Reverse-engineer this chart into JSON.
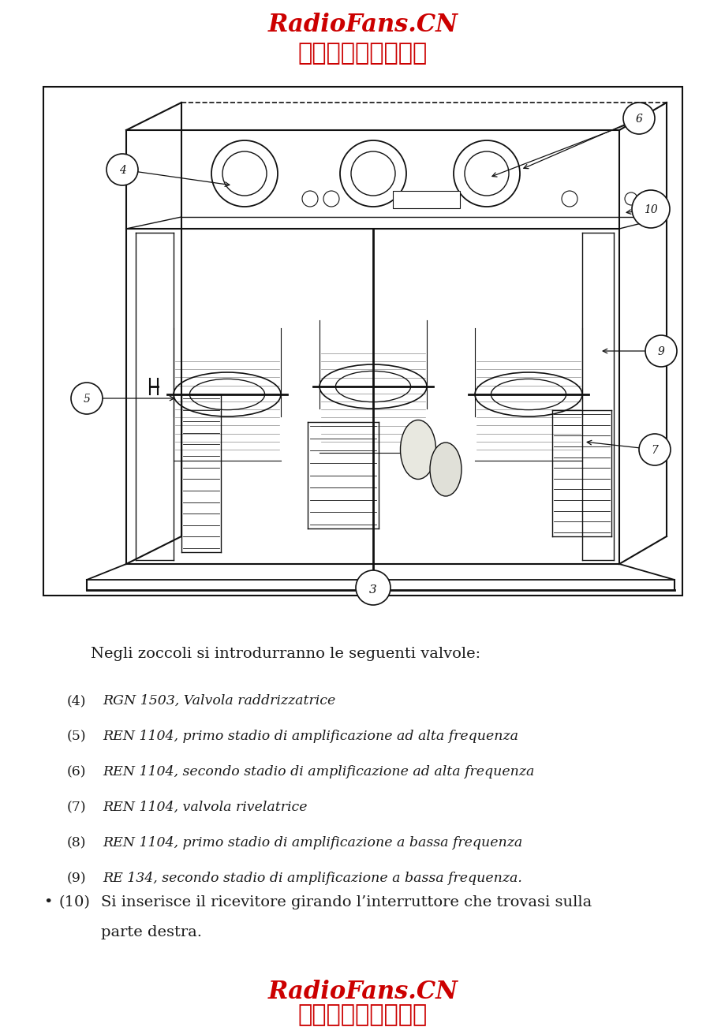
{
  "bg_color": "#ffffff",
  "header_line1": "RadioFans.CN",
  "header_line2": "收音机爱好者资料库",
  "footer_line1": "RadioFans.CN",
  "footer_line2": "收音机爱好者资料库",
  "red_color": "#cc0000",
  "text_color": "#1a1a1a",
  "intro_text": "Negli zoccoli si introdurranno le seguenti valvole:",
  "items": [
    [
      "(4)",
      "RGN 1503, Valvola raddrizzatrice"
    ],
    [
      "(5)",
      "REN 1104, primo stadio di amplificazione ad alta frequenza"
    ],
    [
      "(6)",
      "REN 1104, secondo stadio di amplificazione ad alta frequenza"
    ],
    [
      "(7)",
      "REN 1104, valvola rivelatrice"
    ],
    [
      "(8)",
      "REN 1104, primo stadio di amplificazione a bassa frequenza"
    ],
    [
      "(9)",
      "RE 134, secondo stadio di amplificazione a bassa frequenza."
    ]
  ],
  "note_bullet": "•",
  "note_num": "(10)",
  "note_line1": "Si inserisce il ricevitore girando l’interruttore che trovasi sulla",
  "note_line2": "parte destra.",
  "page_width": 9.2,
  "page_height": 13.02,
  "dpi": 100
}
